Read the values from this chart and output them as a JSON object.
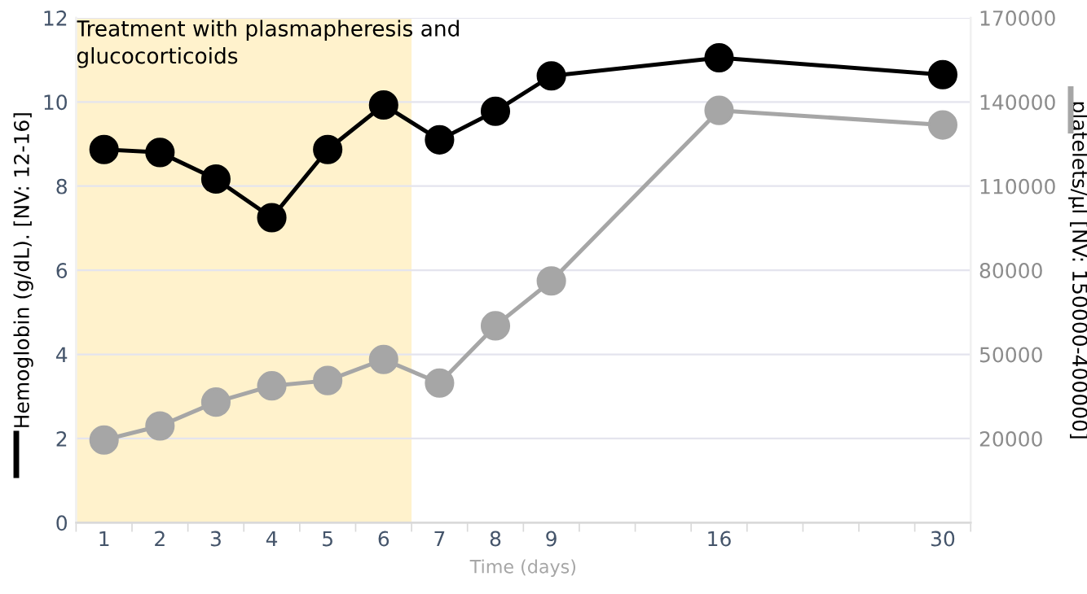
{
  "chart_data": {
    "type": "line",
    "annotations": [
      "Treatment with plasmapheresis and\nglucocorticoids"
    ],
    "xlabel": "Time (days)",
    "ylabel": "Hemoglobin (g/dL). [NV: 12-16]",
    "y2label": "platelets/µl [NV: 150000-400000]",
    "categories": [
      "1",
      "2",
      "3",
      "4",
      "5",
      "6",
      "7",
      "8",
      "9",
      null,
      null,
      "16",
      null,
      null,
      null,
      "30"
    ],
    "series": [
      {
        "color": "#000000",
        "values": [
          8.87,
          8.8,
          8.17,
          7.25,
          8.87,
          9.93,
          9.1,
          9.78,
          10.62,
          null,
          null,
          11.05,
          null,
          null,
          null,
          10.65
        ]
      },
      {
        "color": "#a6a6a6",
        "axis": "y2",
        "values": [
          19500,
          24500,
          33000,
          38800,
          40700,
          48200,
          39800,
          60200,
          76200,
          null,
          null,
          137000,
          null,
          null,
          null,
          131800
        ]
      }
    ],
    "ylim": [
      0,
      12
    ],
    "yticks": [
      0,
      2,
      4,
      6,
      8,
      10,
      12
    ],
    "y2lim": [
      -10000,
      170000
    ],
    "y2ticks": [
      20000,
      50000,
      80000,
      110000,
      140000,
      170000
    ],
    "bands": [
      {
        "axis": "x",
        "from": "1",
        "to": "6",
        "color": "#fff2cc"
      }
    ],
    "grid": "y",
    "marker": "circle",
    "line_style": "solid"
  }
}
